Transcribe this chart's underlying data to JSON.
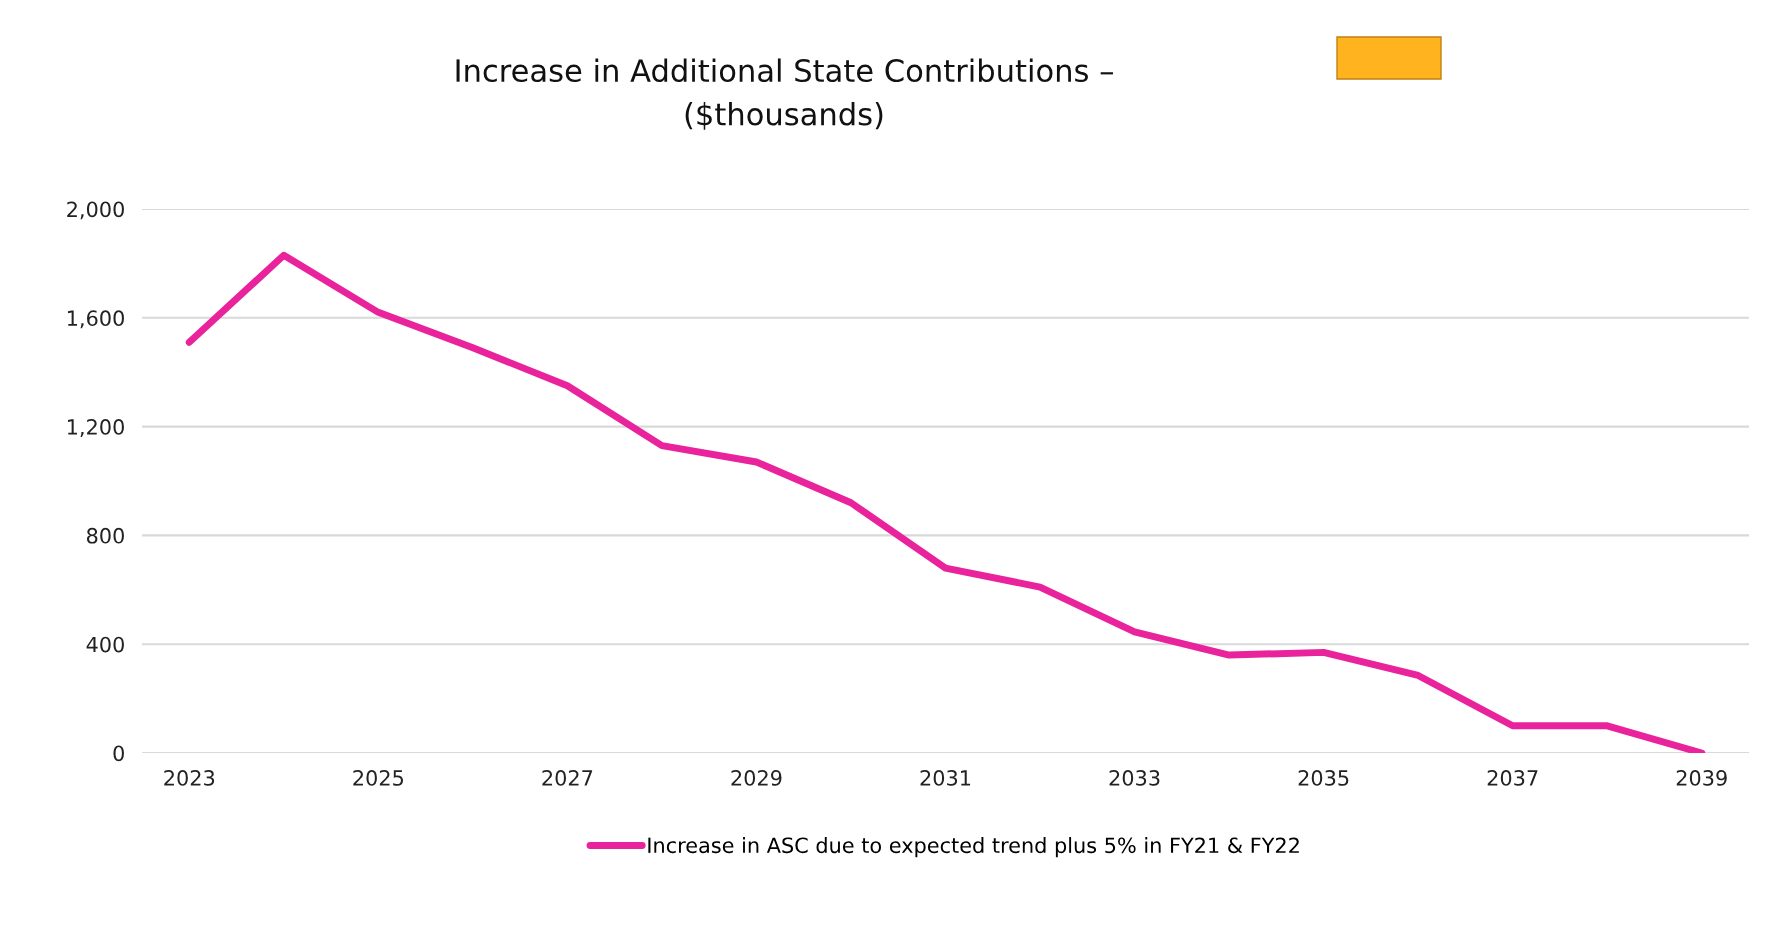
{
  "chart_data": {
    "type": "line",
    "title": "Increase in Additional State Contributions –\n($thousands)",
    "x": [
      2023,
      2024,
      2025,
      2026,
      2027,
      2028,
      2029,
      2030,
      2031,
      2032,
      2033,
      2034,
      2035,
      2036,
      2037,
      2038,
      2039
    ],
    "series": [
      {
        "name": "Increase in ASC due to expected trend plus 5% in FY21 & FY22",
        "color": "#e9239b",
        "values": [
          1510,
          1830,
          1620,
          1490,
          1350,
          1130,
          1070,
          920,
          680,
          610,
          445,
          360,
          370,
          285,
          100,
          100,
          0
        ]
      }
    ],
    "xlim": [
      2022.5,
      2039.5
    ],
    "xticks": [
      2023,
      2025,
      2027,
      2029,
      2031,
      2033,
      2035,
      2037,
      2039
    ],
    "ylim": [
      0,
      2000
    ],
    "yticks": [
      {
        "value": 0,
        "label": "0"
      },
      {
        "value": 400,
        "label": "400"
      },
      {
        "value": 800,
        "label": "800"
      },
      {
        "value": 1200,
        "label": "1,200"
      },
      {
        "value": 1600,
        "label": "1,600"
      },
      {
        "value": 2000,
        "label": "2,000"
      }
    ],
    "grid": "y",
    "legend": "bottom",
    "marker": "none",
    "line_style": "solid"
  }
}
